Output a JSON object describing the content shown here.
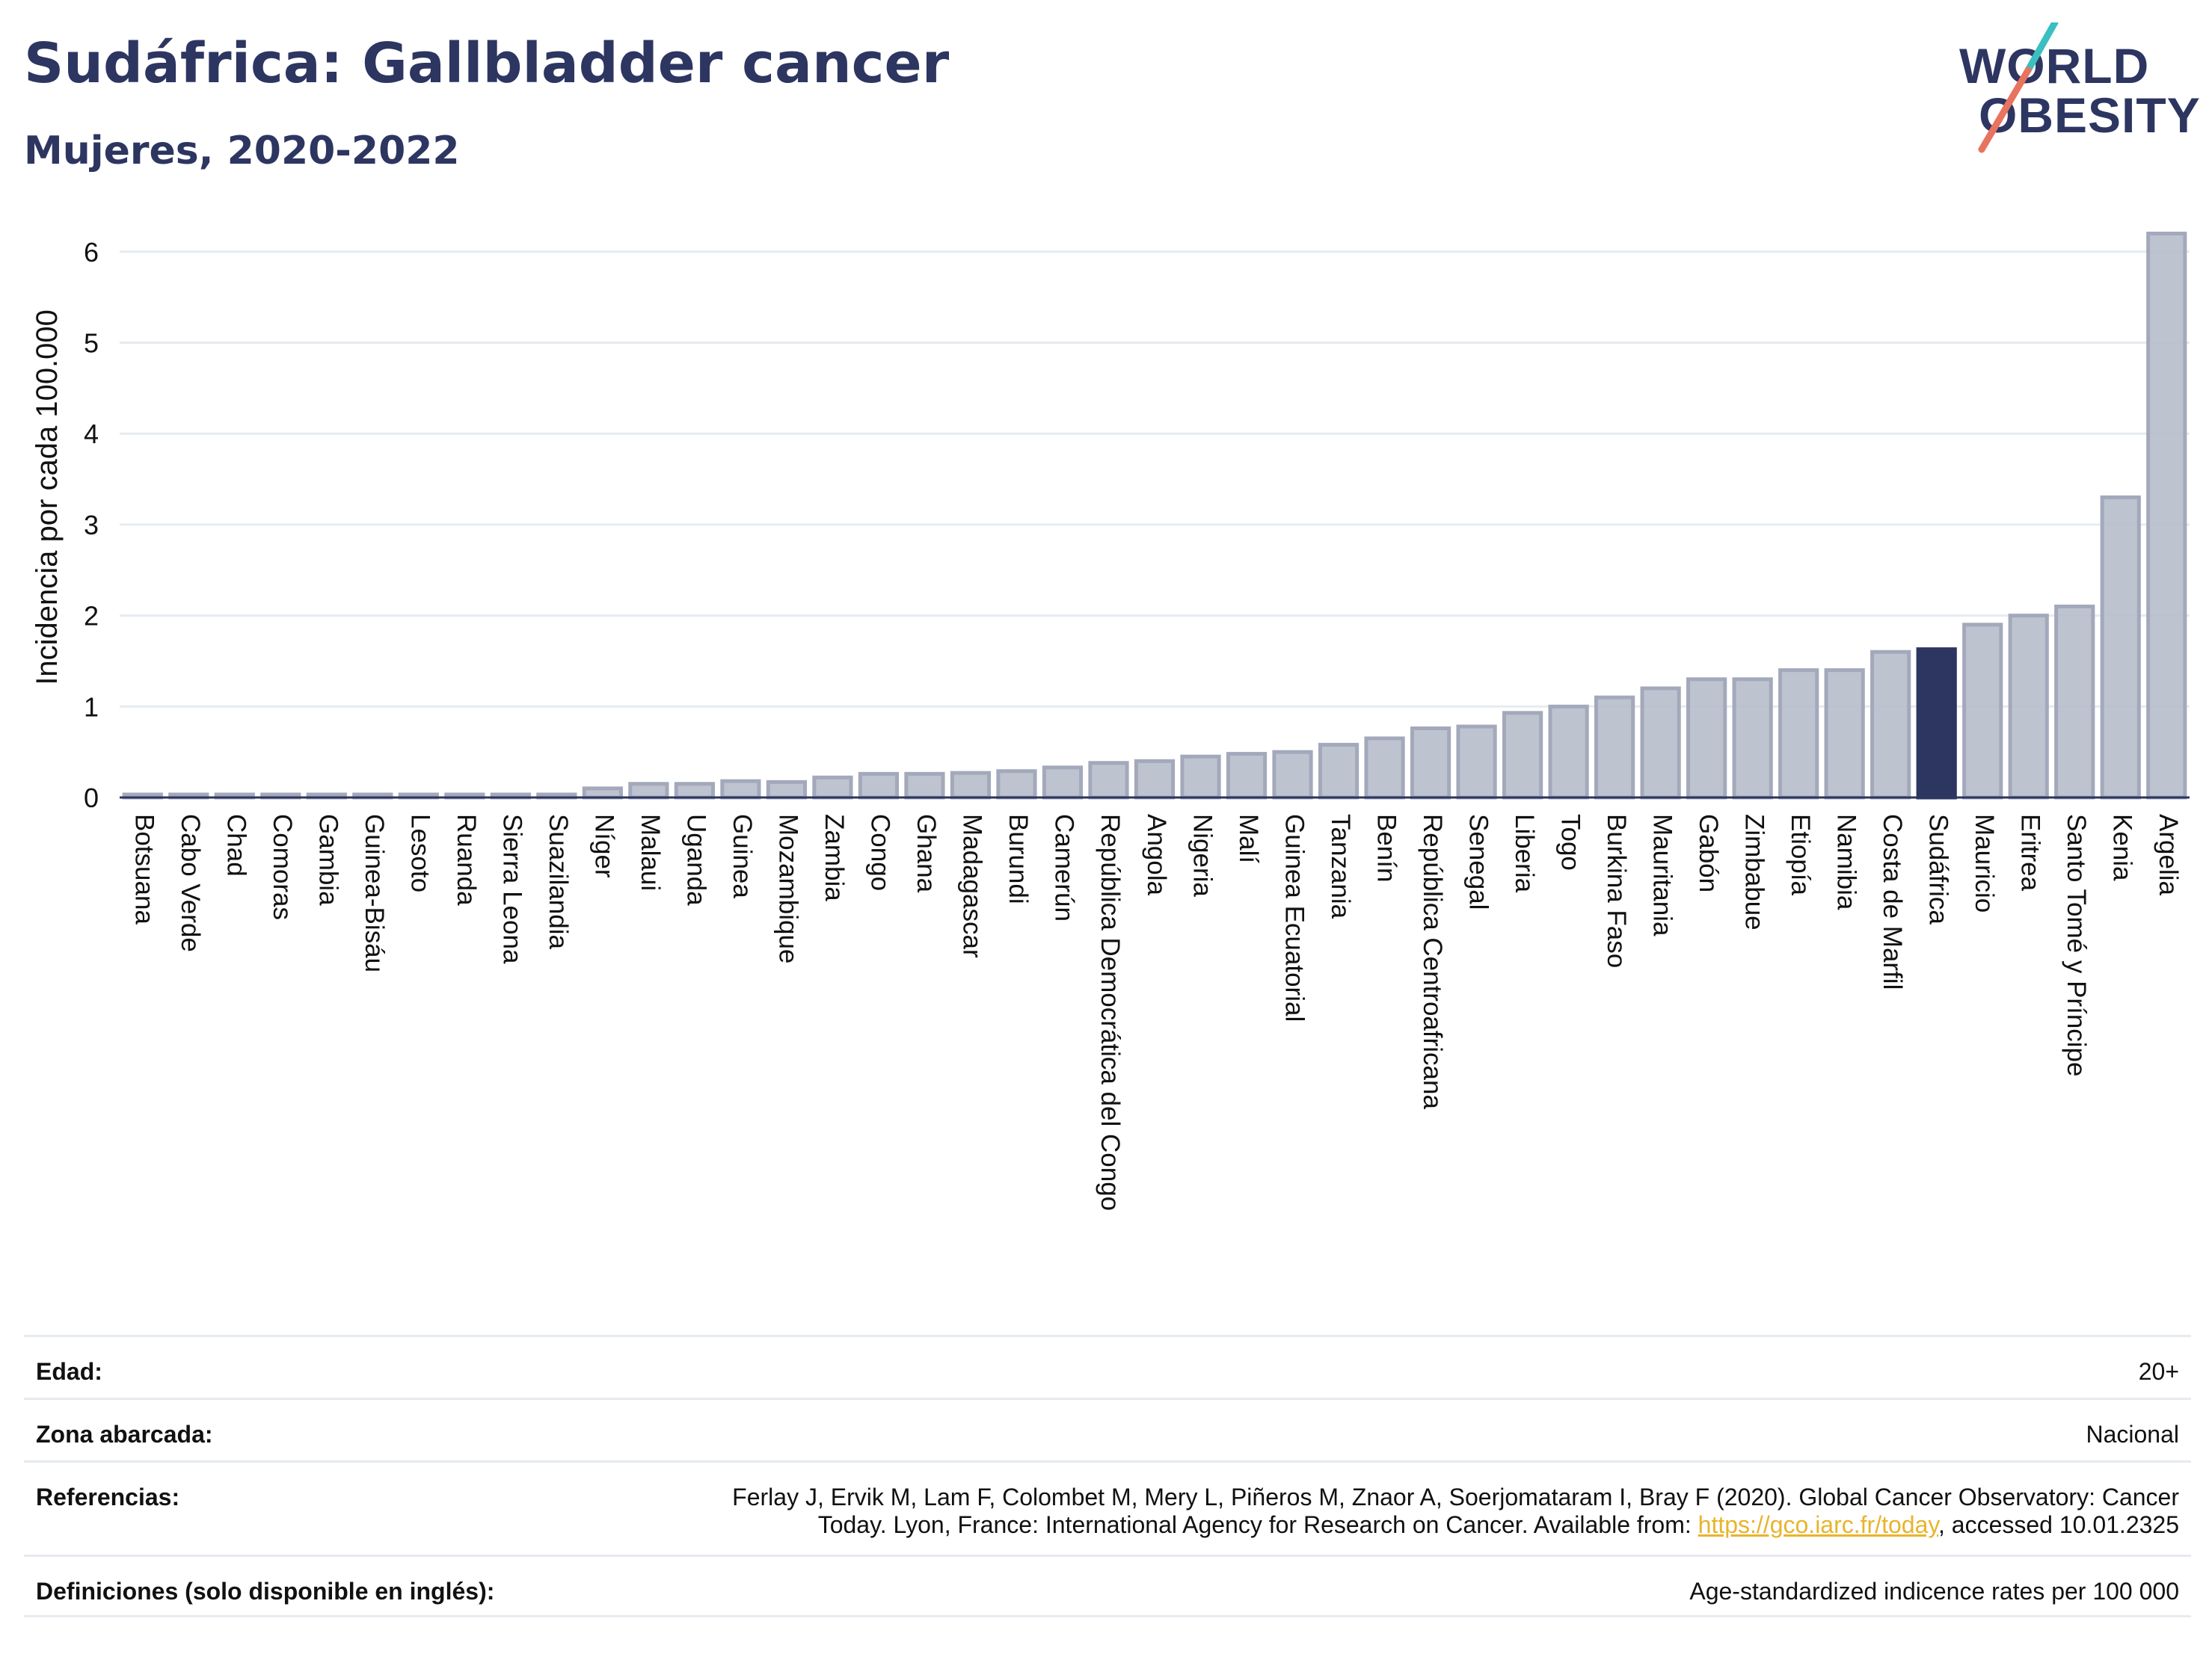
{
  "header": {
    "title": "Sudáfrica: Gallbladder cancer",
    "subtitle": "Mujeres, 2020-2022"
  },
  "logo": {
    "line1": "WORLD",
    "line2": "OBESITY",
    "colors": {
      "teal": "#3bbfc0",
      "coral": "#e8735f",
      "navy": "#2d3561"
    }
  },
  "chart_data": {
    "type": "bar",
    "ylabel": "Incidencia por cada 100.000",
    "ylim": [
      0,
      6.5
    ],
    "yticks": [
      0,
      1,
      2,
      3,
      4,
      5,
      6
    ],
    "grid": true,
    "highlight": "Sudáfrica",
    "colors": {
      "bar": "#b7bccb",
      "bar_edge": "#a3a9bb",
      "highlight": "#2d3561",
      "grid": "#e6ebf0",
      "axis": "#2d3561"
    },
    "categories": [
      "Botsuana",
      "Cabo Verde",
      "Chad",
      "Comoras",
      "Gambia",
      "Guinea-Bisáu",
      "Lesoto",
      "Ruanda",
      "Sierra Leona",
      "Suazilandia",
      "Níger",
      "Malaui",
      "Uganda",
      "Guinea",
      "Mozambique",
      "Zambia",
      "Congo",
      "Ghana",
      "Madagascar",
      "Burundi",
      "Camerún",
      "República Democrática del Congo",
      "Angola",
      "Nigeria",
      "Malí",
      "Guinea Ecuatorial",
      "Tanzania",
      "Benín",
      "República Centroafricana",
      "Senegal",
      "Liberia",
      "Togo",
      "Burkina Faso",
      "Mauritania",
      "Gabón",
      "Zimbabue",
      "Etiopía",
      "Namibia",
      "Costa de Marfil",
      "Sudáfrica",
      "Mauricio",
      "Eritrea",
      "Santo Tomé y Príncipe",
      "Kenia",
      "Argelia"
    ],
    "values": [
      0.02,
      0.02,
      0.02,
      0.02,
      0.02,
      0.02,
      0.02,
      0.02,
      0.02,
      0.02,
      0.1,
      0.15,
      0.15,
      0.18,
      0.17,
      0.22,
      0.26,
      0.26,
      0.27,
      0.29,
      0.33,
      0.38,
      0.4,
      0.45,
      0.48,
      0.5,
      0.58,
      0.65,
      0.76,
      0.78,
      0.93,
      1.0,
      1.1,
      1.2,
      1.3,
      1.3,
      1.4,
      1.4,
      1.6,
      1.63,
      1.9,
      2.0,
      2.1,
      3.3,
      6.2
    ]
  },
  "meta": {
    "age_label": "Edad:",
    "age_value": "20+",
    "zone_label": "Zona abarcada:",
    "zone_value": "Nacional",
    "refs_label": "Referencias:",
    "refs_text1": "Ferlay J, Ervik M, Lam F, Colombet M, Mery L, Piñeros M, Znaor A, Soerjomataram I, Bray F (2020). Global Cancer Observatory: Cancer",
    "refs_text2": "Today. Lyon, France: International Agency for Research on Cancer. Available from: ",
    "refs_link": "https://gco.iarc.fr/today",
    "refs_text3": ", accessed 10.01.2325",
    "defs_label": "Definiciones (solo disponible en inglés):",
    "defs_value": "Age-standardized indicence rates per 100 000"
  }
}
